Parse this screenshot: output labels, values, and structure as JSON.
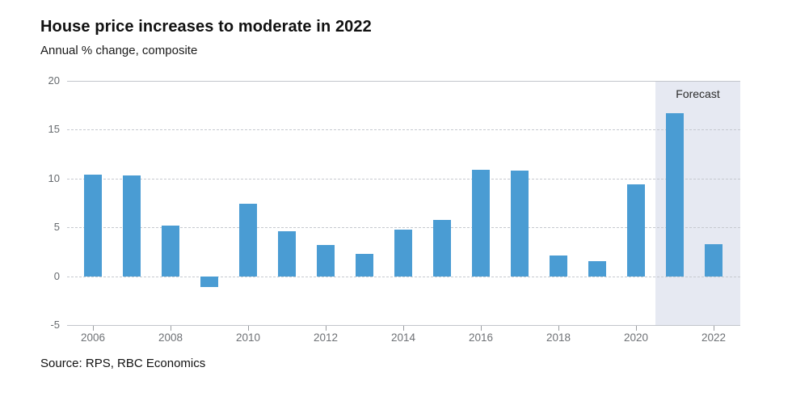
{
  "header": {
    "title": "House price increases to moderate in 2022",
    "subtitle": "Annual % change, composite"
  },
  "source_note": "Source: RPS, RBC Economics",
  "colors": {
    "bar": "#4a9cd3",
    "forecast_band": "#e6e9f2",
    "gridline": "#c6c9cf",
    "axis_text": "#6e7175",
    "title_text": "#111111"
  },
  "chart_data": {
    "type": "bar",
    "title": "House price increases to moderate in 2022",
    "subtitle": "Annual % change, composite",
    "source": "Source: RPS, RBC Economics",
    "categories": [
      2006,
      2007,
      2008,
      2009,
      2010,
      2011,
      2012,
      2013,
      2014,
      2015,
      2016,
      2017,
      2018,
      2019,
      2020,
      2021,
      2022
    ],
    "values": [
      10.4,
      10.3,
      5.2,
      -1.1,
      7.4,
      4.6,
      3.2,
      2.3,
      4.8,
      5.8,
      10.9,
      10.8,
      2.1,
      1.5,
      9.4,
      16.7,
      3.3
    ],
    "ylim": [
      -5,
      20
    ],
    "yticks": [
      20,
      15,
      10,
      5,
      0,
      -5
    ],
    "xticks": [
      2006,
      2008,
      2010,
      2012,
      2014,
      2016,
      2018,
      2020,
      2022
    ],
    "grid": true,
    "legend": "none",
    "forecast": {
      "label": "Forecast",
      "from": 2020.5,
      "years": [
        2021,
        2022
      ]
    }
  }
}
